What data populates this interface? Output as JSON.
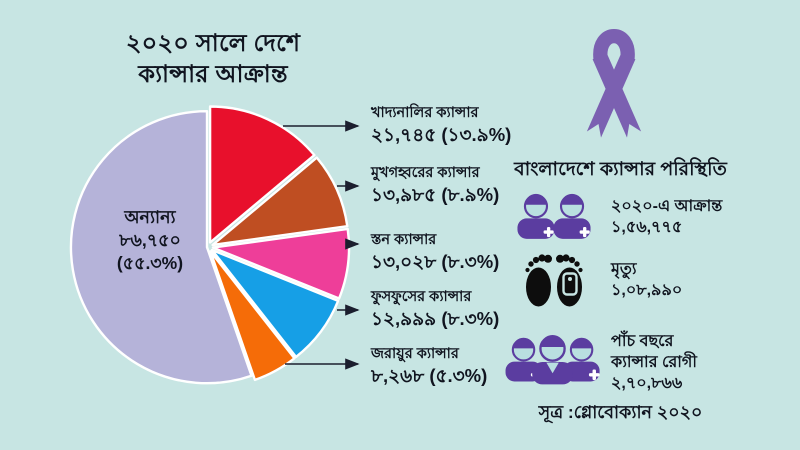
{
  "title": {
    "line1": "২০২০ সালে দেশে",
    "line2": "ক্যান্সার আক্রান্ত"
  },
  "chart_data": {
    "type": "pie",
    "title": "২০২০ সালে দেশে ক্যান্সার আক্রান্ত",
    "legend_position": "right-labels-with-arrows",
    "start_angle": 0,
    "direction": "clockwise",
    "slices": [
      {
        "label": "খাদ্যনালির ক্যান্সার",
        "value": 21745,
        "pct": 13.9,
        "color": "#e8102c",
        "explode": 5
      },
      {
        "label": "মুখগহ্বরের ক্যান্সার",
        "value": 13985,
        "pct": 8.9,
        "color": "#bf4e22",
        "explode": 5
      },
      {
        "label": "স্তন ক্যান্সার",
        "value": 13028,
        "pct": 8.3,
        "color": "#ee3e99",
        "explode": 5
      },
      {
        "label": "ফুসফুসের ক্যান্সার",
        "value": 12999,
        "pct": 8.3,
        "color": "#169fe6",
        "explode": 5
      },
      {
        "label": "জরায়ুর ক্যান্সার",
        "value": 8268,
        "pct": 5.3,
        "color": "#f56c08",
        "explode": 5
      },
      {
        "label": "অন্যান্য",
        "value": 86750,
        "pct": 55.3,
        "color": "#b5b3d9",
        "explode": 1
      }
    ]
  },
  "pie_labels": [
    {
      "name": "খাদ্যনালির ক্যান্সার",
      "value": "২১,৭৪৫ (১৩.৯%)"
    },
    {
      "name": "মুখগহ্বরের ক্যান্সার",
      "value": "১৩,৯৮৫ (৮.৯%)"
    },
    {
      "name": "স্তন ক্যান্সার",
      "value": "১৩,০২৮ (৮.৩%)"
    },
    {
      "name": "ফুসফুসের ক্যান্সার",
      "value": "১২,৯৯৯ (৮.৩%)"
    },
    {
      "name": "জরায়ুর ক্যান্সার",
      "value": "৮,২৬৮ (৫.৩%)"
    }
  ],
  "others_label": {
    "name": "অন্যান্য",
    "value": "৮৬,৭৫০",
    "pct": "(৫৫.৩%)"
  },
  "right_panel": {
    "header": "বাংলাদেশে ক্যান্সার পরিস্থিতি",
    "stats": [
      {
        "icon": "patients-two-icon",
        "lines": [
          "২০২০-এ আক্রান্ত",
          "১,৫৬,৭৭৫"
        ],
        "value": 156775
      },
      {
        "icon": "death-feet-icon",
        "lines": [
          "মৃত্যু",
          "১,০৮,৯৯০"
        ],
        "value": 108990
      },
      {
        "icon": "patients-three-icon",
        "lines": [
          "পাঁচ বছরে",
          "ক্যান্সার রোগী",
          "২,৭০,৮৬৬"
        ],
        "value": 270866
      }
    ],
    "source": "সূত্র :গ্লোবোক্যান ২০২০"
  },
  "colors": {
    "bg": "#c7e5e3",
    "ink": "#10141f",
    "ribbon": "#7b60b1",
    "iconp": "#5b3da0",
    "face": "#b9dfe0",
    "feet": "#0d0d0d",
    "arrow": "#1b1e2e"
  }
}
